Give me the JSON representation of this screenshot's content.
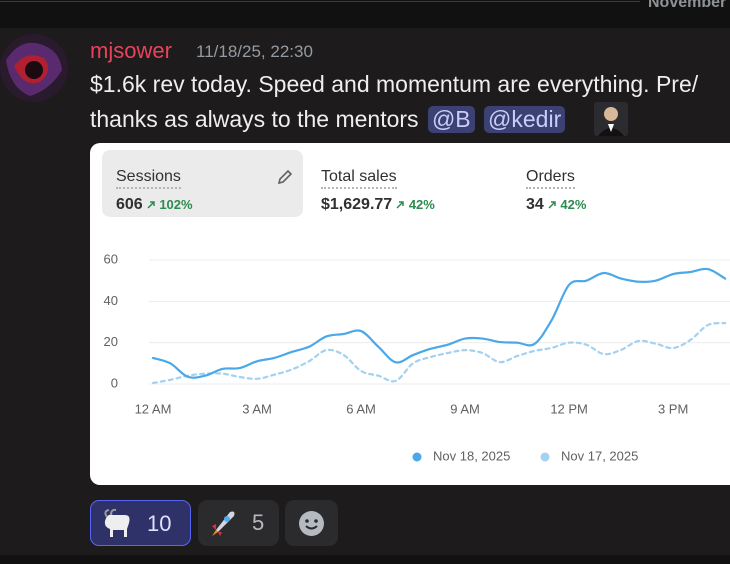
{
  "divider": {
    "label": "November"
  },
  "message": {
    "author": "mjsower",
    "timestamp": "11/18/25, 22:30",
    "text_line1": "$1.6k rev today. Speed and momentum are everything. Pre/",
    "text_line2": "thanks as always to the mentors",
    "mentions": [
      "@B",
      "@kedir"
    ]
  },
  "metrics": [
    {
      "label": "Sessions",
      "value": "606",
      "change": "102%"
    },
    {
      "label": "Total sales",
      "value": "$1,629.77",
      "change": "42%"
    },
    {
      "label": "Orders",
      "value": "34",
      "change": "42%"
    }
  ],
  "chart_data": {
    "type": "line",
    "x": [
      0,
      0.5,
      1,
      1.5,
      2,
      2.5,
      3,
      3.5,
      4,
      4.5,
      5,
      5.5,
      6,
      6.5,
      7,
      7.5,
      8,
      8.5,
      9,
      9.5,
      10,
      10.5,
      11,
      11.5,
      12,
      12.5,
      13,
      13.5,
      14,
      14.5,
      15,
      15.5,
      16,
      16.5
    ],
    "xlim": [
      0,
      16.64
    ],
    "xticks": [
      {
        "value": 0,
        "label": "12 AM"
      },
      {
        "value": 3,
        "label": "3 AM"
      },
      {
        "value": 6,
        "label": "6 AM"
      },
      {
        "value": 9,
        "label": "9 AM"
      },
      {
        "value": 12,
        "label": "12 PM"
      },
      {
        "value": 15,
        "label": "3 PM"
      }
    ],
    "ylim": [
      0,
      60
    ],
    "yticks": [
      0,
      20,
      40,
      60
    ],
    "grid": true,
    "series": [
      {
        "name": "Nov 18, 2025",
        "color": "#4aa8e8",
        "dashed": false,
        "values": [
          12.6,
          10,
          3.5,
          4,
          7.3,
          7.7,
          11,
          12.6,
          15.5,
          18,
          23,
          24.2,
          25.6,
          18,
          10.5,
          14,
          17,
          19,
          22,
          22,
          20.3,
          20,
          19.4,
          31,
          48,
          50,
          53.7,
          51,
          49.5,
          50,
          53.2,
          54.2,
          55.6,
          51
        ]
      },
      {
        "name": "Nov 17, 2025",
        "color": "#a3d1f2",
        "dashed": true,
        "values": [
          0.5,
          2,
          4,
          5,
          5,
          3.4,
          2.5,
          4.5,
          7,
          11,
          16.4,
          14,
          6.3,
          4,
          1.5,
          10,
          13,
          15,
          16.4,
          15,
          10.6,
          13.5,
          16,
          17.5,
          20,
          19,
          14.5,
          16.5,
          20.8,
          19.5,
          17.4,
          21.3,
          28.5,
          29.5
        ]
      }
    ]
  },
  "reactions": [
    {
      "count": 10
    },
    {
      "count": 5
    }
  ]
}
